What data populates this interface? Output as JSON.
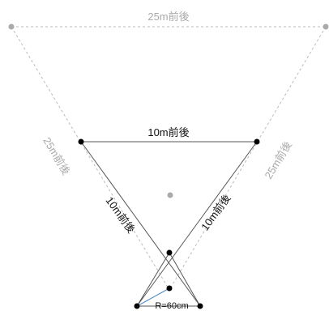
{
  "labels": {
    "outer_top": "25m前後",
    "outer_left": "25m前後",
    "outer_right": "25m前後",
    "inner_top": "10m前後",
    "inner_left": "10m前後",
    "inner_right": "10m前後",
    "radius": "R=60cm"
  },
  "colors": {
    "outer_line": "#bbbbbb",
    "outer_text": "#aaaaaa",
    "inner_line": "#555555",
    "inner_text": "#111111",
    "dot_black": "#000000",
    "dot_gray": "#aaaaaa",
    "radius_line": "#5b8fc9"
  }
}
